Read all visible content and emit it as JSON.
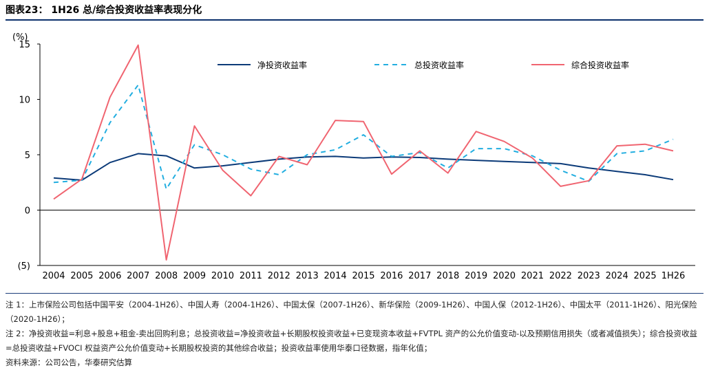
{
  "header": {
    "title": "图表23： 1H26 总/综合投资收益率表现分化"
  },
  "chart_data": {
    "type": "line",
    "categories": [
      "2004",
      "2005",
      "2006",
      "2007",
      "2008",
      "2009",
      "2010",
      "2011",
      "2012",
      "2013",
      "2014",
      "2015",
      "2016",
      "2017",
      "2018",
      "2019",
      "2020",
      "2021",
      "2022",
      "2023",
      "2024",
      "2025",
      "1H26"
    ],
    "unit_label": "(%)",
    "ylim": [
      -5,
      15
    ],
    "yticks": [
      -5,
      0,
      5,
      10,
      15
    ],
    "ytick_labels": [
      "(5)",
      "0",
      "5",
      "10",
      "15"
    ],
    "legend_position": "top-right",
    "grid": false,
    "series": [
      {
        "name": "净投资收益率",
        "color": "#0b3a78",
        "dash": "solid",
        "values": [
          2.9,
          2.7,
          4.3,
          5.1,
          4.9,
          3.8,
          4.0,
          4.3,
          4.6,
          4.8,
          4.85,
          4.7,
          4.8,
          4.75,
          4.6,
          4.5,
          4.4,
          4.3,
          4.2,
          3.8,
          3.5,
          3.2,
          2.75
        ]
      },
      {
        "name": "总投资收益率",
        "color": "#22aee0",
        "dash": "dashed",
        "values": [
          2.5,
          2.7,
          7.9,
          11.3,
          1.9,
          5.9,
          5.0,
          3.7,
          3.2,
          5.0,
          5.45,
          6.8,
          4.85,
          5.2,
          3.8,
          5.55,
          5.55,
          4.9,
          3.6,
          2.6,
          5.1,
          5.35,
          6.4
        ]
      },
      {
        "name": "综合投资收益率",
        "color": "#f06470",
        "dash": "solid",
        "values": [
          1.0,
          2.8,
          10.2,
          14.9,
          -4.5,
          7.6,
          3.6,
          1.3,
          4.85,
          4.1,
          8.1,
          8.0,
          3.25,
          5.35,
          3.35,
          7.1,
          6.2,
          4.7,
          2.15,
          2.65,
          5.8,
          5.95,
          5.35
        ]
      }
    ]
  },
  "notes": {
    "note1": "注 1：上市保险公司包括中国平安（2004-1H26）、中国人寿（2004-1H26）、中国太保（2007-1H26）、新华保险（2009-1H26）、中国人保（2012-1H26）、中国太平（2011-1H26）、阳光保险（2020-1H26）；",
    "note2": "注 2：净投资收益=利息+股息+租金-卖出回购利息；总投资收益=净投资收益+长期股权投资收益+已变现资本收益+FVTPL 资产的公允价值变动-以及预期信用损失（或者减值损失）；综合投资收益=总投资收益+FVOCI 权益资产公允价值变动+长期股权投资的其他综合收益；投资收益率使用华泰口径数据，指年化值；",
    "source": "资料来源：公司公告，华泰研究估算"
  }
}
